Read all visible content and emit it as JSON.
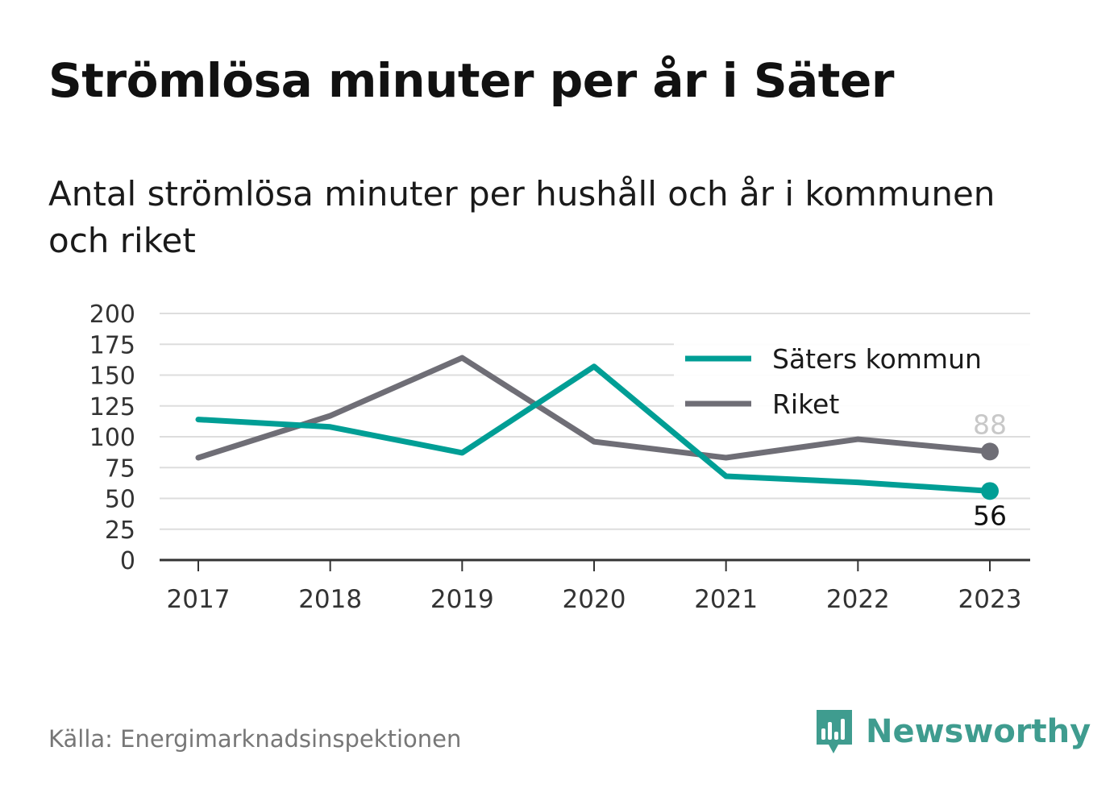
{
  "title": "Strömlösa minuter per år i Säter",
  "subtitle": "Antal strömlösa minuter per hushåll och år i kommunen och riket",
  "source": "Källa: Energimarknadsinspektionen",
  "brand": {
    "name": "Newsworthy",
    "icon": "newsworthy-logo-icon",
    "color": "#3f9c8f"
  },
  "chart_data": {
    "type": "line",
    "title": "Strömlösa minuter per år i Säter",
    "subtitle": "Antal strömlösa minuter per hushåll och år i kommunen och riket",
    "x": [
      "2017",
      "2018",
      "2019",
      "2020",
      "2021",
      "2022",
      "2023"
    ],
    "ylim": [
      0,
      200
    ],
    "yticks": [
      0,
      25,
      50,
      75,
      100,
      125,
      150,
      175,
      200
    ],
    "grid": true,
    "legend_position": "top-right",
    "series": [
      {
        "name": "Säters kommun",
        "color": "#009e95",
        "values": [
          114,
          108,
          87,
          157,
          68,
          63,
          56
        ],
        "end_label": "56"
      },
      {
        "name": "Riket",
        "color": "#6f6e76",
        "values": [
          83,
          117,
          164,
          96,
          83,
          98,
          88
        ],
        "end_label": "88"
      }
    ]
  }
}
